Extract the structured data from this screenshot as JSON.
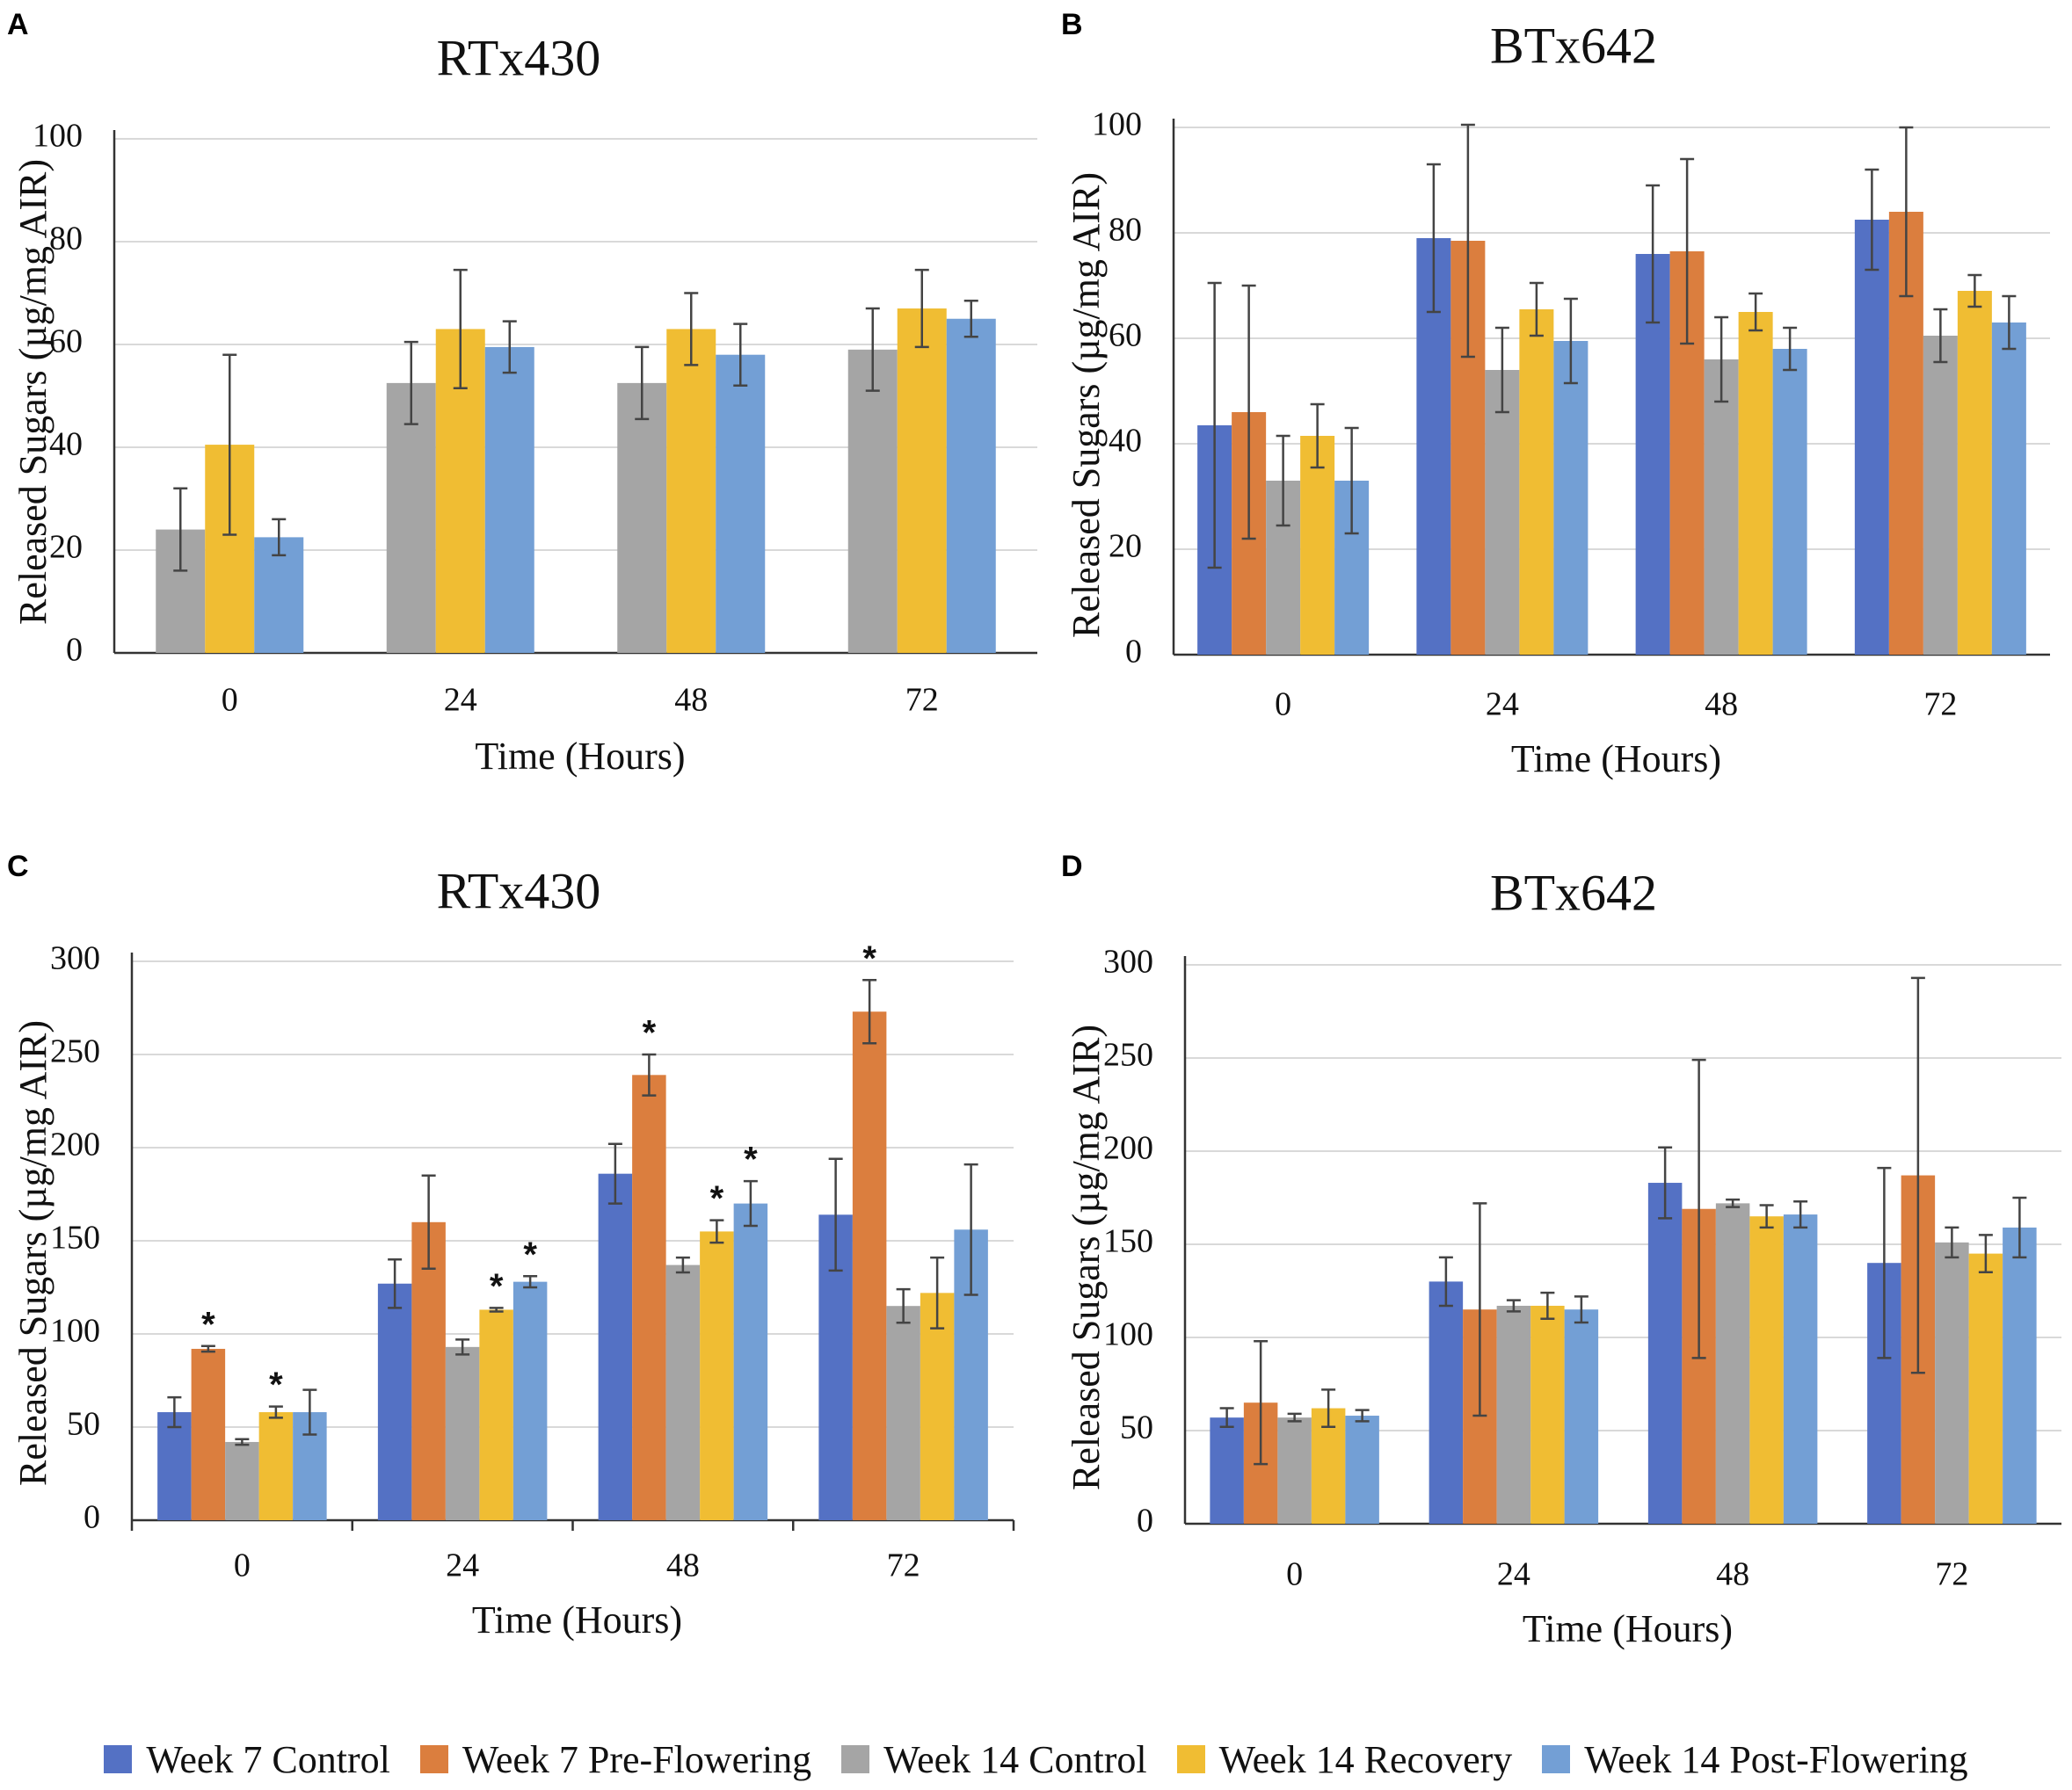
{
  "series": [
    {
      "name": "Week 7 Control",
      "color": "#5471c4"
    },
    {
      "name": "Week 7 Pre-Flowering",
      "color": "#db7e3e"
    },
    {
      "name": "Week 14 Control",
      "color": "#a5a5a5"
    },
    {
      "name": "Week 14 Recovery",
      "color": "#f0bd33"
    },
    {
      "name": "Week 14 Post-Flowering",
      "color": "#739fd5"
    }
  ],
  "chart_data": [
    {
      "panel": "A",
      "type": "bar",
      "title": "RTx430",
      "xlabel": "Time (Hours)",
      "ylabel": "Released Sugars (µg/mg AIR)",
      "categories": [
        "0",
        "24",
        "48",
        "72"
      ],
      "ylim": [
        0,
        100
      ],
      "yticks": [
        "0",
        "20",
        "40",
        "60",
        "80",
        "100"
      ],
      "grid": true,
      "series": [
        {
          "name": "Week 14 Control",
          "values": [
            24,
            52.5,
            52.5,
            59
          ],
          "errors": [
            8,
            8,
            7,
            8
          ]
        },
        {
          "name": "Week 14 Recovery",
          "values": [
            40.5,
            63,
            63,
            67
          ],
          "errors": [
            17.5,
            11.5,
            7,
            7.5
          ]
        },
        {
          "name": "Week 14 Post-Flowering",
          "values": [
            22.5,
            59.5,
            58,
            65
          ],
          "errors": [
            3.5,
            5,
            6,
            3.5
          ]
        }
      ],
      "annotations": []
    },
    {
      "panel": "B",
      "type": "bar",
      "title": "BTx642",
      "xlabel": "Time (Hours)",
      "ylabel": "Released Sugars (µg/mg AIR)",
      "categories": [
        "0",
        "24",
        "48",
        "72"
      ],
      "ylim": [
        0,
        100
      ],
      "yticks": [
        "0",
        "20",
        "40",
        "60",
        "80",
        "100"
      ],
      "grid": true,
      "series": [
        {
          "name": "Week 7 Control",
          "values": [
            43.5,
            79,
            76,
            82.5
          ],
          "errors": [
            27,
            14,
            13,
            9.5
          ]
        },
        {
          "name": "Week 7 Pre-Flowering",
          "values": [
            46,
            78.5,
            76.5,
            84
          ],
          "errors": [
            24,
            22,
            17.5,
            16
          ]
        },
        {
          "name": "Week 14 Control",
          "values": [
            33,
            54,
            56,
            60.5
          ],
          "errors": [
            8.5,
            8,
            8,
            5
          ]
        },
        {
          "name": "Week 14 Recovery",
          "values": [
            41.5,
            65.5,
            65,
            69
          ],
          "errors": [
            6,
            5,
            3.5,
            3
          ]
        },
        {
          "name": "Week 14 Post-Flowering",
          "values": [
            33,
            59.5,
            58,
            63
          ],
          "errors": [
            10,
            8,
            4,
            5
          ]
        }
      ],
      "annotations": []
    },
    {
      "panel": "C",
      "type": "bar",
      "title": "RTx430",
      "xlabel": "Time (Hours)",
      "ylabel": "Released Sugars (µg/mg AIR)",
      "categories": [
        "0",
        "24",
        "48",
        "72"
      ],
      "ylim": [
        0,
        300
      ],
      "yticks": [
        "0",
        "50",
        "100",
        "150",
        "200",
        "250",
        "300"
      ],
      "grid": true,
      "series": [
        {
          "name": "Week 7 Control",
          "values": [
            58,
            127,
            186,
            164
          ],
          "errors": [
            8,
            13,
            16,
            30
          ]
        },
        {
          "name": "Week 7 Pre-Flowering",
          "values": [
            92,
            160,
            239,
            273
          ],
          "errors": [
            1.5,
            25,
            11,
            17
          ]
        },
        {
          "name": "Week 14 Control",
          "values": [
            42,
            93,
            137,
            115
          ],
          "errors": [
            1.5,
            4,
            4,
            9
          ]
        },
        {
          "name": "Week 14 Recovery",
          "values": [
            58,
            113,
            155,
            122
          ],
          "errors": [
            3,
            1,
            6,
            19
          ]
        },
        {
          "name": "Week 14 Post-Flowering",
          "values": [
            58,
            128,
            170,
            156
          ],
          "errors": [
            12,
            3,
            12,
            35
          ]
        }
      ],
      "annotations": [
        {
          "text": "*",
          "category": "0",
          "series": "Week 7 Pre-Flowering"
        },
        {
          "text": "*",
          "category": "0",
          "series": "Week 14 Recovery"
        },
        {
          "text": "*",
          "category": "24",
          "series": "Week 14 Recovery"
        },
        {
          "text": "*",
          "category": "24",
          "series": "Week 14 Post-Flowering"
        },
        {
          "text": "*",
          "category": "48",
          "series": "Week 7 Pre-Flowering"
        },
        {
          "text": "*",
          "category": "48",
          "series": "Week 14 Recovery"
        },
        {
          "text": "*",
          "category": "48",
          "series": "Week 14 Post-Flowering"
        },
        {
          "text": "*",
          "category": "72",
          "series": "Week 7 Pre-Flowering"
        }
      ]
    },
    {
      "panel": "D",
      "type": "bar",
      "title": "BTx642",
      "xlabel": "Time (Hours)",
      "ylabel": "Released Sugars (µg/mg AIR)",
      "categories": [
        "0",
        "24",
        "48",
        "72"
      ],
      "ylim": [
        0,
        300
      ],
      "yticks": [
        "0",
        "50",
        "100",
        "150",
        "200",
        "250",
        "300"
      ],
      "grid": true,
      "series": [
        {
          "name": "Week 7 Control",
          "values": [
            57,
            130,
            183,
            140
          ],
          "errors": [
            5,
            13,
            19,
            51
          ]
        },
        {
          "name": "Week 7 Pre-Flowering",
          "values": [
            65,
            115,
            169,
            187
          ],
          "errors": [
            33,
            57,
            80,
            106
          ]
        },
        {
          "name": "Week 14 Control",
          "values": [
            57,
            117,
            172,
            151
          ],
          "errors": [
            2,
            3,
            2,
            8
          ]
        },
        {
          "name": "Week 14 Recovery",
          "values": [
            62,
            117,
            165,
            145
          ],
          "errors": [
            10,
            7,
            6,
            10
          ]
        },
        {
          "name": "Week 14 Post-Flowering",
          "values": [
            58,
            115,
            166,
            159
          ],
          "errors": [
            3,
            7,
            7,
            16
          ]
        }
      ],
      "annotations": []
    }
  ]
}
